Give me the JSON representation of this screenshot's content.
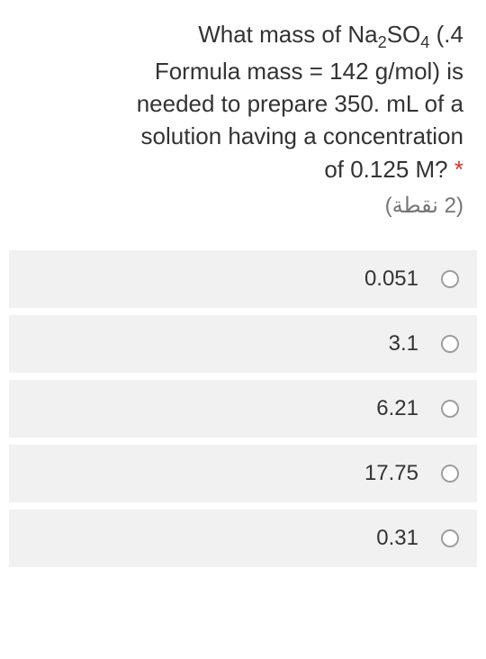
{
  "question": {
    "line1": "What mass of Na",
    "sub1": "2",
    "line1b": "SO",
    "sub2": "4",
    "line1c": " (.4",
    "line2": "Formula mass = 142 g/mol)  is",
    "line3": "needed to prepare 350. mL of a",
    "line4": "solution having a concentration",
    "line5": "?of 0.125 M",
    "required": "*",
    "points": "(2 نقطة)"
  },
  "options": [
    {
      "label": "0.051"
    },
    {
      "label": "3.1"
    },
    {
      "label": "6.21"
    },
    {
      "label": "17.75"
    },
    {
      "label": "0.31"
    }
  ],
  "styling": {
    "background_color": "#ffffff",
    "option_bg_color": "#f1f1f1",
    "text_color": "#333333",
    "points_color": "#757575",
    "required_color": "#d93025",
    "radio_border_color": "#9e9e9e",
    "question_fontsize": 26,
    "option_fontsize": 24,
    "points_fontsize": 24
  }
}
